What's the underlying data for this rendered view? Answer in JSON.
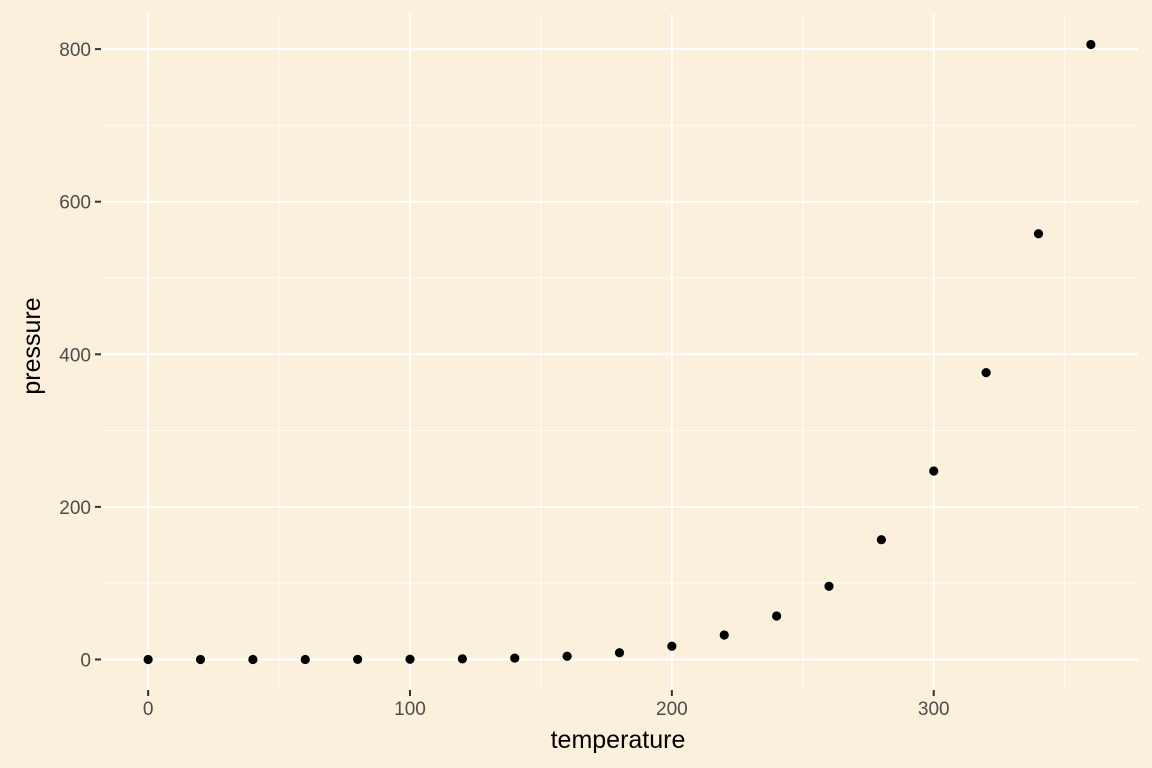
{
  "colors": {
    "background": "#FAF0DC",
    "panel": "#FAF0DC",
    "grid": "#FFFFFF",
    "point": "#000000",
    "tick_text": "#4D4D4D"
  },
  "chart_data": {
    "type": "scatter",
    "title": "",
    "xlabel": "temperature",
    "ylabel": "pressure",
    "xlim": [
      -18,
      378
    ],
    "ylim": [
      -40,
      846
    ],
    "x_ticks": [
      0,
      100,
      200,
      300
    ],
    "x_tick_labels": [
      "0",
      "100",
      "200",
      "300"
    ],
    "y_ticks": [
      0,
      200,
      400,
      600,
      800
    ],
    "y_tick_labels": [
      "0",
      "200",
      "400",
      "600",
      "800"
    ],
    "x_minor": [
      50,
      150,
      250,
      350
    ],
    "y_minor": [
      100,
      300,
      500,
      700
    ],
    "grid": true,
    "legend": "none",
    "series": [
      {
        "x": [
          0,
          20,
          40,
          60,
          80,
          100,
          120,
          140,
          160,
          180,
          200,
          220,
          240,
          260,
          280,
          300,
          320,
          340,
          360
        ],
        "y": [
          0.0002,
          0.0012,
          0.006,
          0.03,
          0.09,
          0.27,
          0.75,
          1.85,
          4.2,
          8.8,
          17.3,
          32.1,
          57.0,
          96.0,
          157.0,
          247.0,
          376.0,
          558.0,
          806.0
        ]
      }
    ]
  }
}
